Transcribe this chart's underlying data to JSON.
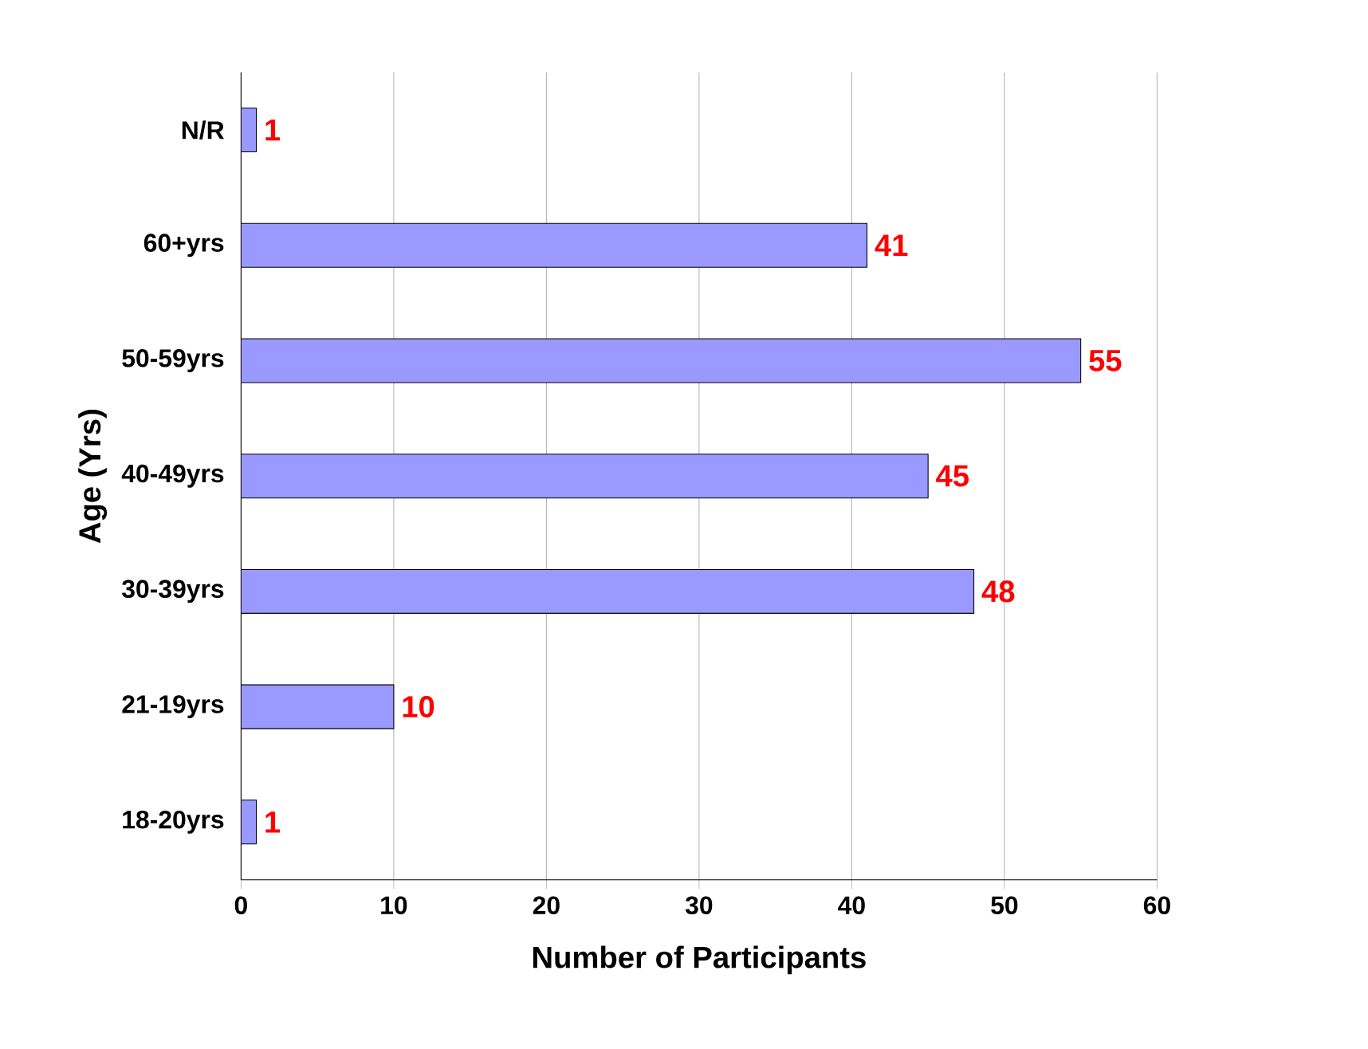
{
  "chart_data": {
    "type": "bar",
    "orientation": "horizontal",
    "xlabel": "Number of Participants",
    "ylabel": "Age (Yrs)",
    "categories": [
      "N/R",
      "60+yrs",
      "50-59yrs",
      "40-49yrs",
      "30-39yrs",
      "21-19yrs",
      "18-20yrs"
    ],
    "values": [
      1,
      41,
      55,
      45,
      48,
      10,
      1
    ],
    "color": "#9999ff",
    "data_labels": true,
    "xlim": [
      0,
      60
    ],
    "xticks": [
      0,
      10,
      20,
      30,
      40,
      50,
      60
    ],
    "grid": "x"
  }
}
